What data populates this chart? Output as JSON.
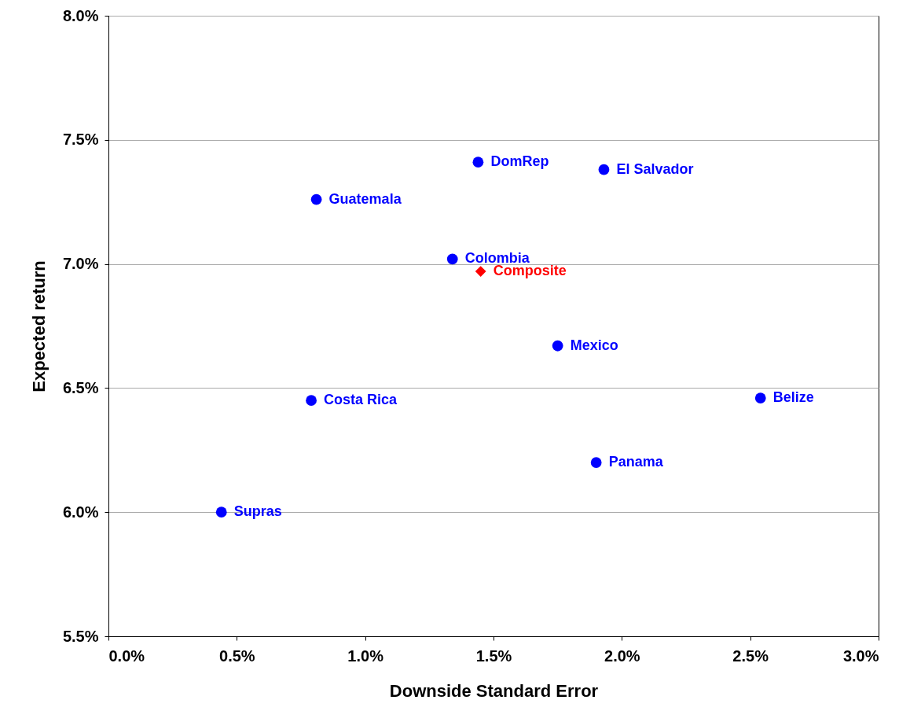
{
  "chart_data": {
    "type": "scatter",
    "xlabel": "Downside Standard Error",
    "ylabel": "Expected return",
    "xlim": [
      0,
      3
    ],
    "ylim": [
      5.5,
      8
    ],
    "xticks": [
      {
        "value": 0,
        "label": "0.0%"
      },
      {
        "value": 0.5,
        "label": "0.5%"
      },
      {
        "value": 1,
        "label": "1.0%"
      },
      {
        "value": 1.5,
        "label": "1.5%"
      },
      {
        "value": 2,
        "label": "2.0%"
      },
      {
        "value": 2.5,
        "label": "2.5%"
      },
      {
        "value": 3,
        "label": "3.0%"
      }
    ],
    "yticks": [
      {
        "value": 5.5,
        "label": "5.5%"
      },
      {
        "value": 6,
        "label": "6.0%"
      },
      {
        "value": 6.5,
        "label": "6.5%"
      },
      {
        "value": 7,
        "label": "7.0%"
      },
      {
        "value": 7.5,
        "label": "7.5%"
      },
      {
        "value": 8,
        "label": "8.0%"
      }
    ],
    "grid": "y",
    "legend": false,
    "series": [
      {
        "name": "Guatemala",
        "color": "#0000ff",
        "marker": "circle",
        "x": [
          0.81
        ],
        "values": [
          7.26
        ]
      },
      {
        "name": "DomRep",
        "color": "#0000ff",
        "marker": "circle",
        "x": [
          1.44
        ],
        "values": [
          7.41
        ]
      },
      {
        "name": "El Salvador",
        "color": "#0000ff",
        "marker": "circle",
        "x": [
          1.93
        ],
        "values": [
          7.38
        ]
      },
      {
        "name": "Colombia",
        "color": "#0000ff",
        "marker": "circle",
        "x": [
          1.34
        ],
        "values": [
          7.02
        ]
      },
      {
        "name": "Composite",
        "color": "#ff0000",
        "marker": "diamond",
        "x": [
          1.45
        ],
        "values": [
          6.97
        ]
      },
      {
        "name": "Mexico",
        "color": "#0000ff",
        "marker": "circle",
        "x": [
          1.75
        ],
        "values": [
          6.67
        ]
      },
      {
        "name": "Costa Rica",
        "color": "#0000ff",
        "marker": "circle",
        "x": [
          0.79
        ],
        "values": [
          6.45
        ]
      },
      {
        "name": "Belize",
        "color": "#0000ff",
        "marker": "circle",
        "x": [
          2.54
        ],
        "values": [
          6.46
        ]
      },
      {
        "name": "Panama",
        "color": "#0000ff",
        "marker": "circle",
        "x": [
          1.9
        ],
        "values": [
          6.2
        ]
      },
      {
        "name": "Supras",
        "color": "#0000ff",
        "marker": "circle",
        "x": [
          0.44
        ],
        "values": [
          6.0
        ]
      }
    ]
  }
}
